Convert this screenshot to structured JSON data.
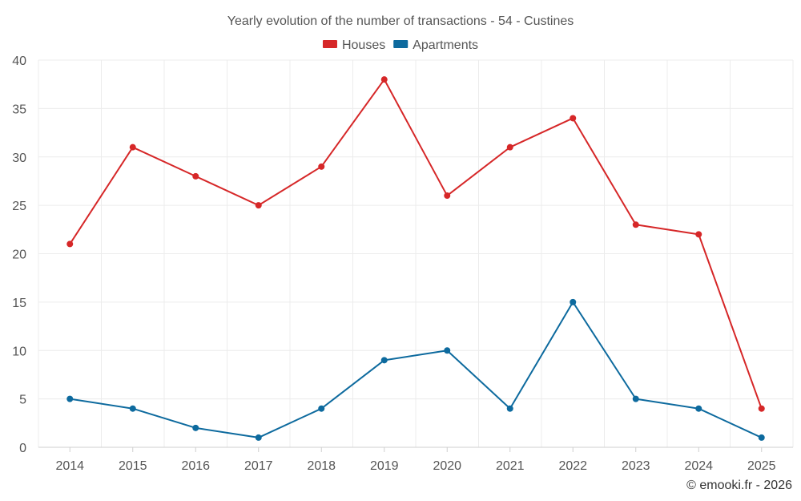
{
  "chart_data": {
    "type": "line",
    "title": "Yearly evolution of the number of transactions - 54 - Custines",
    "categories": [
      "2014",
      "2015",
      "2016",
      "2017",
      "2018",
      "2019",
      "2020",
      "2021",
      "2022",
      "2023",
      "2024",
      "2025"
    ],
    "series": [
      {
        "name": "Houses",
        "color": "#d62728",
        "values": [
          21,
          31,
          28,
          25,
          29,
          38,
          26,
          31,
          34,
          23,
          22,
          4
        ]
      },
      {
        "name": "Apartments",
        "color": "#0d6a9e",
        "values": [
          5,
          4,
          2,
          1,
          4,
          9,
          10,
          4,
          15,
          5,
          4,
          1
        ]
      }
    ],
    "ylim": [
      0,
      40
    ],
    "yticks": [
      "0",
      "5",
      "10",
      "15",
      "20",
      "25",
      "30",
      "35",
      "40"
    ],
    "grid": true,
    "legend": "top-center",
    "xlabel": "",
    "ylabel": ""
  },
  "credit": "© emooki.fr - 2026"
}
